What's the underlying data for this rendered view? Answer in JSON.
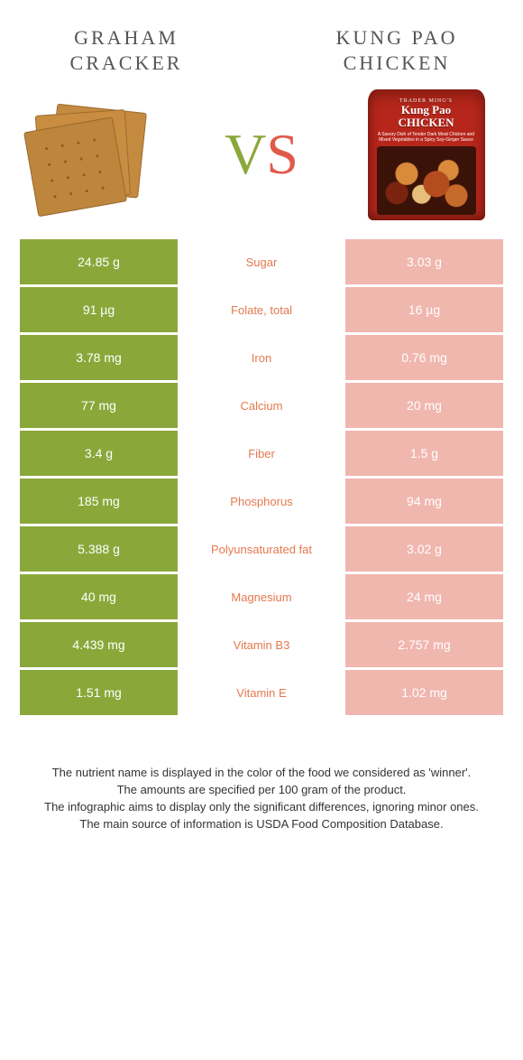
{
  "colors": {
    "left_strong": "#8aa83a",
    "left_weak": "#b7cc77",
    "right_strong": "#e58c80",
    "right_weak": "#f0b7af",
    "nutrient_font": {
      "left_winner": "#e4794e",
      "right_winner": "#8aa83a"
    },
    "vs_v": "#8aa83a",
    "vs_s": "#e05a4a"
  },
  "foods": {
    "left": {
      "title_line1": "Graham",
      "title_line2": "Cracker"
    },
    "right": {
      "title_line1": "Kung Pao",
      "title_line2": "Chicken"
    }
  },
  "vs_label": {
    "v": "V",
    "s": "S"
  },
  "pouch": {
    "small": "TRADER MING'S",
    "line1": "Kung Pao",
    "line2": "CHICKEN",
    "sub": "A Savory Dish of Tender Dark Meat Chicken and Mixed Vegetables in a Spicy Soy-Ginger Sauce"
  },
  "rows": [
    {
      "nutrient": "Sugar",
      "left": "24.85 g",
      "right": "3.03 g",
      "winner": "left"
    },
    {
      "nutrient": "Folate, total",
      "left": "91 µg",
      "right": "16 µg",
      "winner": "left"
    },
    {
      "nutrient": "Iron",
      "left": "3.78 mg",
      "right": "0.76 mg",
      "winner": "left"
    },
    {
      "nutrient": "Calcium",
      "left": "77 mg",
      "right": "20 mg",
      "winner": "left"
    },
    {
      "nutrient": "Fiber",
      "left": "3.4 g",
      "right": "1.5 g",
      "winner": "left"
    },
    {
      "nutrient": "Phosphorus",
      "left": "185 mg",
      "right": "94 mg",
      "winner": "left"
    },
    {
      "nutrient": "Polyunsaturated fat",
      "left": "5.388 g",
      "right": "3.02 g",
      "winner": "left"
    },
    {
      "nutrient": "Magnesium",
      "left": "40 mg",
      "right": "24 mg",
      "winner": "left"
    },
    {
      "nutrient": "Vitamin B3",
      "left": "4.439 mg",
      "right": "2.757 mg",
      "winner": "left"
    },
    {
      "nutrient": "Vitamin E",
      "left": "1.51 mg",
      "right": "1.02 mg",
      "winner": "left"
    }
  ],
  "footer": {
    "l1": "The nutrient name is displayed in the color of the food we considered as 'winner'.",
    "l2": "The amounts are specified per 100 gram of the product.",
    "l3": "The infographic aims to display only the significant differences, ignoring minor ones.",
    "l4": "The main source of information is USDA Food Composition Database."
  }
}
